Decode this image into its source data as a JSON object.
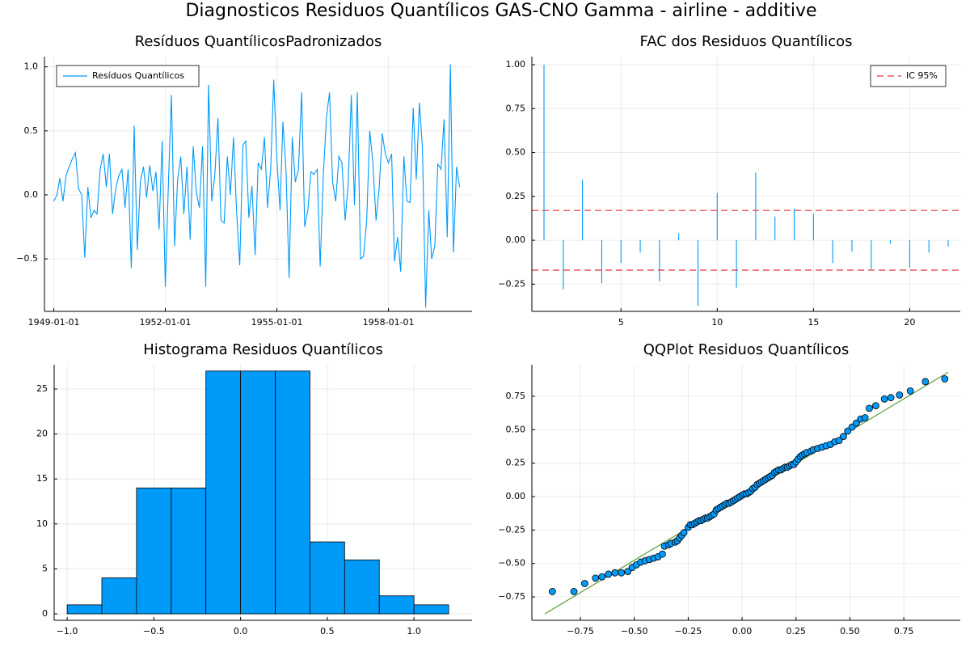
{
  "title": "Diagnosticos Residuos  Quantílicos GAS-CNO Gamma - airline - additive",
  "chart_data": [
    {
      "type": "line",
      "title": "Resíduos  QuantílicosPadronizados",
      "legend": "top-left",
      "grid": true,
      "x": [
        "1949-01-01",
        "1949-02-01",
        "1949-03-01",
        "1949-04-01",
        "1949-05-01",
        "1949-06-01",
        "1949-07-01",
        "1949-08-01",
        "1949-09-01",
        "1949-10-01",
        "1949-11-01",
        "1949-12-01",
        "1950-01-01",
        "1950-02-01",
        "1950-03-01",
        "1950-04-01",
        "1950-05-01",
        "1950-06-01",
        "1950-07-01",
        "1950-08-01",
        "1950-09-01",
        "1950-10-01",
        "1950-11-01",
        "1950-12-01",
        "1951-01-01",
        "1951-02-01",
        "1951-03-01",
        "1951-04-01",
        "1951-05-01",
        "1951-06-01",
        "1951-07-01",
        "1951-08-01",
        "1951-09-01",
        "1951-10-01",
        "1951-11-01",
        "1951-12-01",
        "1952-01-01",
        "1952-02-01",
        "1952-03-01",
        "1952-04-01",
        "1952-05-01",
        "1952-06-01",
        "1952-07-01",
        "1952-08-01",
        "1952-09-01",
        "1952-10-01",
        "1952-11-01",
        "1952-12-01",
        "1953-01-01",
        "1953-02-01",
        "1953-03-01",
        "1953-04-01",
        "1953-05-01",
        "1953-06-01",
        "1953-07-01",
        "1953-08-01",
        "1953-09-01",
        "1953-10-01",
        "1953-11-01",
        "1953-12-01",
        "1954-01-01",
        "1954-02-01",
        "1954-03-01",
        "1954-04-01",
        "1954-05-01",
        "1954-06-01",
        "1954-07-01",
        "1954-08-01",
        "1954-09-01",
        "1954-10-01",
        "1954-11-01",
        "1954-12-01",
        "1955-01-01",
        "1955-02-01",
        "1955-03-01",
        "1955-04-01",
        "1955-05-01",
        "1955-06-01",
        "1955-07-01",
        "1955-08-01",
        "1955-09-01",
        "1955-10-01",
        "1955-11-01",
        "1955-12-01",
        "1956-01-01",
        "1956-02-01",
        "1956-03-01",
        "1956-04-01",
        "1956-05-01",
        "1956-06-01",
        "1956-07-01",
        "1956-08-01",
        "1956-09-01",
        "1956-10-01",
        "1956-11-01",
        "1956-12-01",
        "1957-01-01",
        "1957-02-01",
        "1957-03-01",
        "1957-04-01",
        "1957-05-01",
        "1957-06-01",
        "1957-07-01",
        "1957-08-01",
        "1957-09-01",
        "1957-10-01",
        "1957-11-01",
        "1957-12-01",
        "1958-01-01",
        "1958-02-01",
        "1958-03-01",
        "1958-04-01",
        "1958-05-01",
        "1958-06-01",
        "1958-07-01",
        "1958-08-01",
        "1958-09-01",
        "1958-10-01",
        "1958-11-01",
        "1958-12-01",
        "1959-01-01",
        "1959-02-01",
        "1959-03-01",
        "1959-04-01",
        "1959-05-01",
        "1959-06-01",
        "1959-07-01",
        "1959-08-01",
        "1959-09-01",
        "1959-10-01",
        "1959-11-01",
        "1959-12-01"
      ],
      "series": [
        {
          "name": "Resíduos Quantílicos",
          "color": "#009af9",
          "values": [
            -0.05,
            0.0,
            0.13,
            -0.05,
            0.15,
            0.22,
            0.28,
            0.33,
            0.05,
            0.0,
            -0.49,
            0.06,
            -0.18,
            -0.12,
            -0.15,
            0.2,
            0.32,
            0.06,
            0.32,
            -0.15,
            0.05,
            0.15,
            0.2,
            -0.1,
            0.2,
            -0.57,
            0.54,
            -0.43,
            0.1,
            0.22,
            -0.02,
            0.23,
            0.03,
            0.18,
            -0.27,
            0.42,
            -0.72,
            0.1,
            0.78,
            -0.4,
            0.12,
            0.3,
            -0.15,
            0.22,
            -0.35,
            0.38,
            0.02,
            -0.1,
            0.38,
            -0.72,
            0.86,
            -0.05,
            0.15,
            0.6,
            -0.2,
            -0.22,
            0.3,
            0.0,
            0.45,
            -0.13,
            -0.55,
            0.39,
            0.42,
            -0.18,
            0.07,
            -0.47,
            0.25,
            0.2,
            0.45,
            -0.1,
            0.2,
            0.9,
            0.28,
            -0.12,
            0.57,
            0.18,
            -0.65,
            0.45,
            0.1,
            0.2,
            0.8,
            -0.25,
            -0.12,
            0.18,
            0.16,
            0.2,
            -0.56,
            0.15,
            0.6,
            0.8,
            0.1,
            -0.05,
            0.3,
            0.25,
            -0.2,
            0.08,
            0.78,
            -0.08,
            0.8,
            -0.5,
            -0.48,
            -0.2,
            0.5,
            0.25,
            -0.2,
            0.05,
            0.48,
            0.32,
            0.25,
            0.32,
            -0.52,
            -0.33,
            -0.6,
            0.3,
            -0.05,
            -0.06,
            0.68,
            0.12,
            0.72,
            0.36,
            -0.88,
            -0.12,
            -0.5,
            -0.4,
            0.24,
            0.2,
            0.59,
            -0.33,
            1.02,
            -0.45,
            0.22,
            0.06
          ]
        }
      ],
      "xlim": [
        "1948-10-01",
        "1960-04-01"
      ],
      "xticks": [
        "1949-01-01",
        "1952-01-01",
        "1955-01-01",
        "1958-01-01"
      ],
      "ylim": [
        -0.91,
        1.08
      ],
      "yticks": [
        {
          "value": -0.5,
          "label": "−0.5"
        },
        {
          "value": 0,
          "label": "0.0"
        },
        0.5,
        {
          "value": 1,
          "label": "1.0"
        }
      ]
    },
    {
      "type": "stem",
      "title": "FAC dos Residuos Quantílicos",
      "legend": "top-right",
      "grid": true,
      "color": "#009af9",
      "x": [
        1,
        2,
        3,
        4,
        5,
        6,
        7,
        8,
        9,
        10,
        11,
        12,
        13,
        14,
        15,
        16,
        17,
        18,
        19,
        20,
        21,
        22
      ],
      "values": [
        1.0,
        -0.28,
        0.345,
        -0.245,
        -0.13,
        -0.07,
        -0.235,
        0.04,
        -0.375,
        0.27,
        -0.27,
        0.385,
        0.135,
        0.18,
        0.15,
        -0.13,
        -0.065,
        -0.165,
        -0.02,
        -0.155,
        -0.07,
        -0.035
      ],
      "reference_lines": {
        "name": "IC 95%",
        "color": "#e8333a",
        "values": [
          0.17,
          -0.17
        ]
      },
      "xlim": [
        0.37,
        22.63
      ],
      "xticks": [
        5,
        10,
        15,
        20
      ],
      "ylim": [
        -0.405,
        1.046
      ],
      "yticks": [
        {
          "value": -0.25,
          "label": "−0.25"
        },
        {
          "value": 0,
          "label": "0.00"
        },
        0.25,
        {
          "value": 0.5,
          "label": "0.50"
        },
        0.75,
        {
          "value": 1,
          "label": "1.00"
        }
      ]
    },
    {
      "type": "histogram",
      "title": "Histograma Residuos Quantílicos",
      "grid": true,
      "color": "#009af9",
      "bins": [
        -1.0,
        -0.8,
        -0.6,
        -0.4,
        -0.2,
        0.0,
        0.2,
        0.4,
        0.6,
        0.8,
        1.0,
        1.2
      ],
      "values": [
        1,
        4,
        14,
        14,
        27,
        27,
        27,
        8,
        6,
        2,
        1
      ],
      "xlim": [
        -1.075,
        1.335
      ],
      "xticks": [
        {
          "value": -1,
          "label": "−1.0"
        },
        {
          "value": -0.5,
          "label": "−0.5"
        },
        {
          "value": 0,
          "label": "0.0"
        },
        0.5,
        {
          "value": 1,
          "label": "1.0"
        }
      ],
      "ylim": [
        -0.72,
        27.7
      ],
      "yticks": [
        0,
        5,
        10,
        15,
        20,
        25
      ]
    },
    {
      "type": "scatter",
      "title": "QQPlot Residuos Quantílicos",
      "grid": true,
      "color": "#009af9",
      "x": [
        -0.88,
        -0.78,
        -0.73,
        -0.68,
        -0.65,
        -0.62,
        -0.59,
        -0.56,
        -0.53,
        -0.51,
        -0.49,
        -0.47,
        -0.45,
        -0.43,
        -0.41,
        -0.39,
        -0.37,
        -0.36,
        -0.34,
        -0.33,
        -0.31,
        -0.3,
        -0.29,
        -0.28,
        -0.27,
        -0.25,
        -0.24,
        -0.23,
        -0.22,
        -0.21,
        -0.2,
        -0.19,
        -0.18,
        -0.17,
        -0.16,
        -0.15,
        -0.14,
        -0.13,
        -0.12,
        -0.11,
        -0.1,
        -0.09,
        -0.08,
        -0.07,
        -0.06,
        -0.05,
        -0.04,
        -0.03,
        -0.02,
        -0.01,
        0.0,
        0.01,
        0.02,
        0.03,
        0.04,
        0.05,
        0.06,
        0.07,
        0.08,
        0.09,
        0.1,
        0.11,
        0.12,
        0.13,
        0.14,
        0.15,
        0.16,
        0.17,
        0.18,
        0.19,
        0.2,
        0.21,
        0.22,
        0.23,
        0.24,
        0.25,
        0.26,
        0.27,
        0.28,
        0.29,
        0.3,
        0.32,
        0.33,
        0.35,
        0.37,
        0.39,
        0.41,
        0.43,
        0.45,
        0.47,
        0.49,
        0.51,
        0.53,
        0.55,
        0.57,
        0.59,
        0.62,
        0.66,
        0.69,
        0.73,
        0.78,
        0.85,
        0.94
      ],
      "values": [
        -0.71,
        -0.71,
        -0.65,
        -0.61,
        -0.6,
        -0.58,
        -0.57,
        -0.57,
        -0.56,
        -0.53,
        -0.51,
        -0.49,
        -0.48,
        -0.47,
        -0.46,
        -0.45,
        -0.43,
        -0.37,
        -0.36,
        -0.35,
        -0.34,
        -0.33,
        -0.31,
        -0.29,
        -0.27,
        -0.23,
        -0.21,
        -0.21,
        -0.2,
        -0.19,
        -0.18,
        -0.18,
        -0.17,
        -0.16,
        -0.16,
        -0.15,
        -0.14,
        -0.13,
        -0.1,
        -0.09,
        -0.08,
        -0.07,
        -0.06,
        -0.05,
        -0.05,
        -0.04,
        -0.03,
        -0.02,
        -0.01,
        0.0,
        0.01,
        0.02,
        0.02,
        0.03,
        0.04,
        0.06,
        0.07,
        0.09,
        0.1,
        0.11,
        0.12,
        0.13,
        0.14,
        0.15,
        0.16,
        0.18,
        0.19,
        0.2,
        0.2,
        0.21,
        0.22,
        0.22,
        0.23,
        0.24,
        0.24,
        0.26,
        0.28,
        0.3,
        0.31,
        0.32,
        0.33,
        0.34,
        0.35,
        0.36,
        0.37,
        0.38,
        0.39,
        0.41,
        0.42,
        0.45,
        0.49,
        0.52,
        0.55,
        0.58,
        0.59,
        0.66,
        0.68,
        0.73,
        0.74,
        0.76,
        0.79,
        0.86,
        0.88
      ],
      "fit_line": {
        "color": "#5f9e3f",
        "x": [
          -0.915,
          0.956
        ],
        "y": [
          -0.877,
          0.93
        ]
      },
      "xlim": [
        -0.975,
        1.012
      ],
      "xticks": [
        {
          "value": -0.75,
          "label": "−0.75"
        },
        {
          "value": -0.5,
          "label": "−0.50"
        },
        {
          "value": -0.25,
          "label": "−0.25"
        },
        {
          "value": 0,
          "label": "0.00"
        },
        0.25,
        {
          "value": 0.5,
          "label": "0.50"
        },
        0.75
      ],
      "ylim": [
        -0.925,
        0.986
      ],
      "yticks": [
        {
          "value": -0.75,
          "label": "−0.75"
        },
        {
          "value": -0.5,
          "label": "−0.50"
        },
        {
          "value": -0.25,
          "label": "−0.25"
        },
        {
          "value": 0,
          "label": "0.00"
        },
        0.25,
        {
          "value": 0.5,
          "label": "0.50"
        },
        0.75
      ]
    }
  ]
}
